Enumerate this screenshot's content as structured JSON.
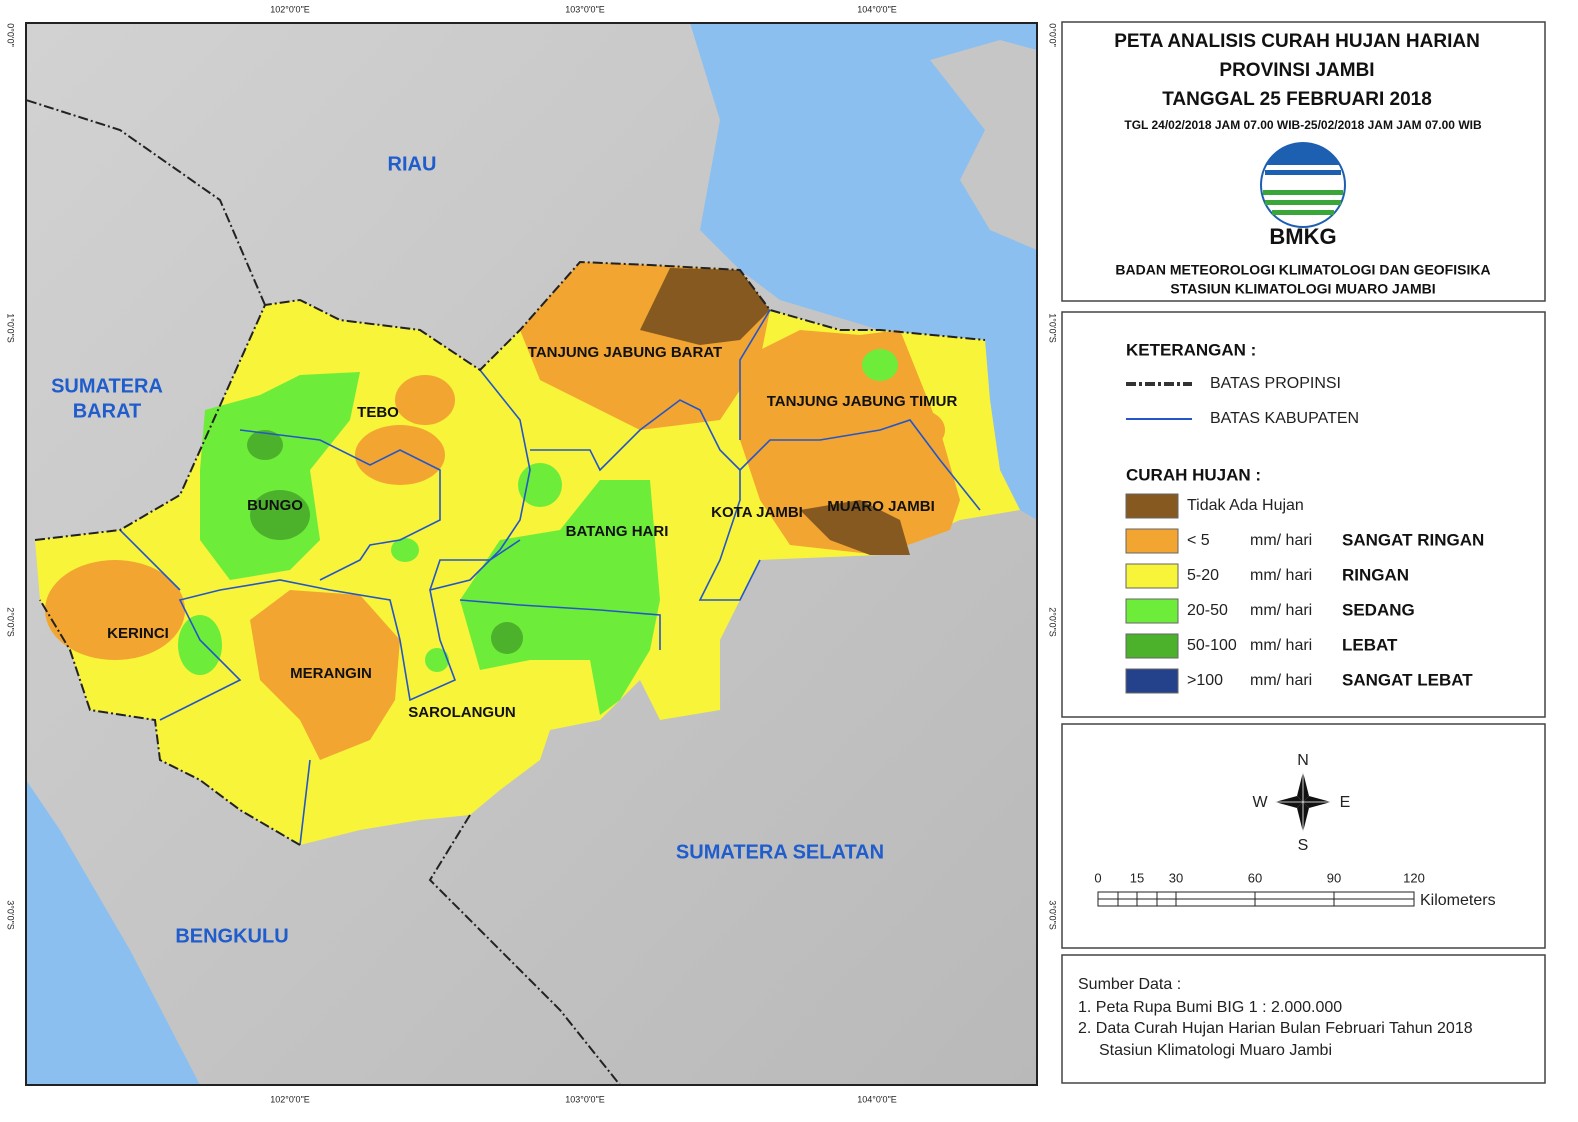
{
  "map": {
    "graticule": {
      "longitudes": [
        "102°0'0\"E",
        "103°0'0\"E",
        "104°0'0\"E"
      ],
      "latitudes": [
        "0°0'0\"",
        "1°0'0\"S",
        "2°0'0\"S",
        "3°0'0\"S"
      ]
    },
    "neighbors": [
      "RIAU",
      "SUMATERA",
      "BARAT",
      "SUMATERA SELATAN",
      "BENGKULU"
    ],
    "districts": [
      "TANJUNG JABUNG BARAT",
      "TANJUNG JABUNG TIMUR",
      "TEBO",
      "BUNGO",
      "BATANG HARI",
      "KOTA JAMBI",
      "MUARO JAMBI",
      "KERINCI",
      "MERANGIN",
      "SAROLANGUN"
    ]
  },
  "header": {
    "title_lines": [
      "PETA ANALISIS CURAH HUJAN HARIAN",
      "PROVINSI JAMBI",
      "TANGGAL 25 FEBRUARI 2018"
    ],
    "period": "TGL 24/02/2018 JAM 07.00 WIB-25/02/2018 JAM JAM 07.00 WIB",
    "logo_text": "BMKG",
    "agency_lines": [
      "BADAN METEOROLOGI KLIMATOLOGI DAN GEOFISIKA",
      "STASIUN KLIMATOLOGI MUARO JAMBI"
    ]
  },
  "legend": {
    "heading": "KETERANGAN :",
    "boundaries": [
      "BATAS PROPINSI",
      "BATAS KABUPATEN"
    ],
    "rain_heading": "CURAH HUJAN :",
    "classes": [
      {
        "range": "Tidak Ada Hujan",
        "color": "#85591f"
      },
      {
        "range": "< 5",
        "unit": "mm/ hari",
        "category": "SANGAT RINGAN",
        "color": "#f2a531"
      },
      {
        "range": "5-20",
        "unit": "mm/ hari",
        "category": "RINGAN",
        "color": "#f7f43a"
      },
      {
        "range": "20-50",
        "unit": "mm/ hari",
        "category": "SEDANG",
        "color": "#6ded3a"
      },
      {
        "range": "50-100",
        "unit": "mm/ hari",
        "category": "LEBAT",
        "color": "#4cb22c"
      },
      {
        "range": ">100",
        "unit": "mm/ hari",
        "category": "SANGAT LEBAT",
        "color": "#24418c"
      }
    ]
  },
  "compass": {
    "north": "N",
    "east": "E",
    "south": "S",
    "west": "W"
  },
  "scale": {
    "ticks": [
      "0",
      "15",
      "30",
      "60",
      "90",
      "120"
    ],
    "unit": "Kilometers"
  },
  "source": {
    "heading": "Sumber Data :",
    "lines": [
      "1. Peta Rupa Bumi BIG 1 : 2.000.000",
      "2. Data Curah Hujan Harian Bulan Februari Tahun 2018",
      "Stasiun Klimatologi Muaro Jambi"
    ]
  }
}
